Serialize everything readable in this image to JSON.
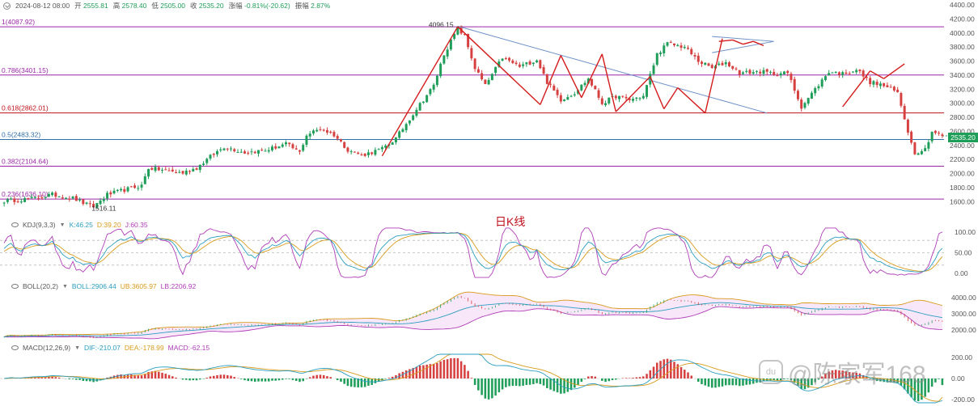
{
  "header": {
    "datetime": "2024-08-12 08:00",
    "open_label": "开",
    "open": "2555.81",
    "high_label": "高",
    "high": "2578.40",
    "low_label": "低",
    "low": "2505.00",
    "close_label": "收",
    "close": "2535.20",
    "change_label": "涨幅",
    "change": "-0.81%(-20.62)",
    "amplitude_label": "振幅",
    "amplitude": "2.87%"
  },
  "caption": "日K线",
  "watermark": {
    "icon_text": "du",
    "text": "@陈家军168"
  },
  "current_price_tag": "2535.20",
  "colors": {
    "up": "#1f9e5a",
    "down": "#d64040",
    "fib": "#9b27a8",
    "fib_618": "#c0101c",
    "trend": "#6b8fc7",
    "arrows": "#d41b1b"
  },
  "chart_data": [
    {
      "type": "candlestick",
      "name": "price",
      "y_axis": {
        "min": 1500,
        "max": 4400,
        "ticks": [
          1600,
          1800,
          2000,
          2200,
          2400,
          2600,
          2800,
          3000,
          3200,
          3400,
          3600,
          3800,
          4000,
          4200,
          4400
        ],
        "tick_labels": [
          "1600.00",
          "1800.00",
          "2000.00",
          "2200.00",
          "2400.00",
          "2600.00",
          "2800.00",
          "3000.00",
          "3200.00",
          "3400.00",
          "3600.00",
          "3800.00",
          "4000.00",
          "4200.00",
          "4400.00"
        ]
      },
      "grid": false,
      "fib_levels": [
        {
          "label": "1(4087.92)",
          "value": 4087.92
        },
        {
          "label": "0.786(3401.15)",
          "value": 3401.15
        },
        {
          "label": "0.618(2862.01)",
          "value": 2862.01
        },
        {
          "label": "0.5(2483.32)",
          "value": 2483.32
        },
        {
          "label": "0.382(2104.64)",
          "value": 2104.64
        },
        {
          "label": "0.236(1636.10)",
          "value": 1636.1
        }
      ],
      "annotations": [
        {
          "text": "4096.15",
          "value": 4096.15
        },
        {
          "text": "1516.11",
          "value": 1516.11
        }
      ],
      "close_key_points": [
        [
          0,
          1610
        ],
        [
          8,
          1640
        ],
        [
          14,
          1700
        ],
        [
          20,
          1650
        ],
        [
          24,
          1560
        ],
        [
          26,
          1530
        ],
        [
          30,
          1700
        ],
        [
          36,
          1780
        ],
        [
          40,
          1830
        ],
        [
          42,
          2080
        ],
        [
          46,
          2050
        ],
        [
          52,
          2010
        ],
        [
          56,
          2080
        ],
        [
          60,
          2240
        ],
        [
          64,
          2380
        ],
        [
          70,
          2300
        ],
        [
          76,
          2330
        ],
        [
          82,
          2420
        ],
        [
          86,
          2300
        ],
        [
          88,
          2550
        ],
        [
          92,
          2640
        ],
        [
          96,
          2550
        ],
        [
          100,
          2340
        ],
        [
          104,
          2260
        ],
        [
          110,
          2350
        ],
        [
          114,
          2500
        ],
        [
          120,
          2920
        ],
        [
          125,
          3250
        ],
        [
          128,
          3700
        ],
        [
          132,
          4070
        ],
        [
          134,
          3950
        ],
        [
          137,
          3500
        ],
        [
          140,
          3250
        ],
        [
          145,
          3650
        ],
        [
          150,
          3520
        ],
        [
          155,
          3620
        ],
        [
          158,
          3300
        ],
        [
          162,
          3050
        ],
        [
          166,
          3150
        ],
        [
          170,
          3350
        ],
        [
          174,
          3000
        ],
        [
          178,
          3100
        ],
        [
          182,
          3050
        ],
        [
          186,
          3100
        ],
        [
          190,
          3700
        ],
        [
          193,
          3850
        ],
        [
          198,
          3800
        ],
        [
          202,
          3600
        ],
        [
          206,
          3500
        ],
        [
          210,
          3580
        ],
        [
          214,
          3430
        ],
        [
          220,
          3450
        ],
        [
          224,
          3420
        ],
        [
          228,
          3430
        ],
        [
          232,
          2950
        ],
        [
          236,
          3200
        ],
        [
          240,
          3450
        ],
        [
          244,
          3420
        ],
        [
          248,
          3480
        ],
        [
          252,
          3300
        ],
        [
          256,
          3250
        ],
        [
          260,
          3150
        ],
        [
          264,
          2430
        ],
        [
          265,
          2300
        ],
        [
          268,
          2350
        ],
        [
          270,
          2600
        ],
        [
          273,
          2540
        ]
      ]
    },
    {
      "type": "line",
      "name": "KDJ(9,3,3)",
      "legend": [
        {
          "name": "K",
          "value": "46.25"
        },
        {
          "name": "D",
          "value": "39.20"
        },
        {
          "name": "J",
          "value": "60.35"
        }
      ],
      "y_axis": {
        "ticks": [
          0,
          50,
          100
        ],
        "tick_labels": [
          "0.00",
          "50.00",
          "100.00"
        ]
      },
      "reference_lines": [
        20,
        50,
        80
      ]
    },
    {
      "type": "line",
      "name": "BOLL(20,2)",
      "legend": [
        {
          "name": "BOLL",
          "value": "2906.44"
        },
        {
          "name": "UB",
          "value": "3605.97"
        },
        {
          "name": "LB",
          "value": "2206.92"
        }
      ],
      "y_axis": {
        "ticks": [
          2000,
          3000,
          4000
        ],
        "tick_labels": [
          "2000.00",
          "3000.00",
          "4000.00"
        ]
      }
    },
    {
      "type": "bar",
      "name": "MACD(12,26,9)",
      "legend": [
        {
          "name": "DIF",
          "value": "-210.07"
        },
        {
          "name": "DEA",
          "value": "-178.99"
        },
        {
          "name": "MACD",
          "value": "-62.15"
        }
      ],
      "y_axis": {
        "ticks": [
          -200,
          0,
          200
        ],
        "tick_labels": [
          "-200.00",
          "0.00",
          "200.00"
        ]
      }
    }
  ]
}
